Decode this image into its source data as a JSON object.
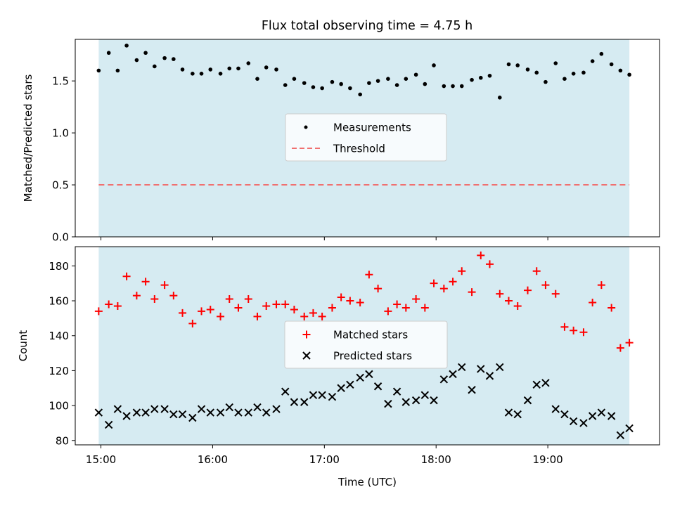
{
  "title": "Flux total observing time = 4.75 h",
  "colors": {
    "band": "#add8e6",
    "measurement": "#000000",
    "threshold": "#f07070",
    "matched": "#ff0000",
    "predicted": "#000000"
  },
  "chart_data": [
    {
      "type": "scatter",
      "ylabel": "Matched/Predicted stars",
      "ylim": [
        0,
        1.9
      ],
      "yticks": [
        0.0,
        0.5,
        1.0,
        1.5
      ],
      "ytick_labels": [
        "0.0",
        "0.5",
        "1.0",
        "1.5"
      ],
      "band_hours": [
        14.98,
        19.73
      ],
      "legend_position": "center",
      "threshold": {
        "name": "Threshold",
        "value": 0.5
      },
      "series": [
        {
          "name": "Measurements",
          "marker": "dot",
          "x": [
            14.98,
            15.07,
            15.15,
            15.23,
            15.32,
            15.4,
            15.48,
            15.57,
            15.65,
            15.73,
            15.82,
            15.9,
            15.98,
            16.07,
            16.15,
            16.23,
            16.32,
            16.4,
            16.48,
            16.57,
            16.65,
            16.73,
            16.82,
            16.9,
            16.98,
            17.07,
            17.15,
            17.23,
            17.32,
            17.4,
            17.48,
            17.57,
            17.65,
            17.73,
            17.82,
            17.9,
            17.98,
            18.07,
            18.15,
            18.23,
            18.32,
            18.4,
            18.48,
            18.57,
            18.65,
            18.73,
            18.82,
            18.9,
            18.98,
            19.07,
            19.15,
            19.23,
            19.32,
            19.4,
            19.48,
            19.57,
            19.65,
            19.73
          ],
          "y": [
            1.6,
            1.77,
            1.6,
            1.84,
            1.7,
            1.77,
            1.64,
            1.72,
            1.71,
            1.61,
            1.57,
            1.57,
            1.61,
            1.57,
            1.62,
            1.62,
            1.67,
            1.52,
            1.63,
            1.61,
            1.46,
            1.52,
            1.48,
            1.44,
            1.43,
            1.49,
            1.47,
            1.43,
            1.37,
            1.48,
            1.5,
            1.52,
            1.46,
            1.52,
            1.56,
            1.47,
            1.65,
            1.45,
            1.45,
            1.45,
            1.51,
            1.53,
            1.55,
            1.34,
            1.66,
            1.65,
            1.61,
            1.58,
            1.49,
            1.67,
            1.52,
            1.57,
            1.58,
            1.69,
            1.76,
            1.66,
            1.6,
            1.56
          ]
        }
      ]
    },
    {
      "type": "scatter",
      "ylabel": "Count",
      "xlabel": "Time (UTC)",
      "ylim": [
        77.5,
        191
      ],
      "yticks": [
        80,
        100,
        120,
        140,
        160,
        180
      ],
      "ytick_labels": [
        "80",
        "100",
        "120",
        "140",
        "160",
        "180"
      ],
      "xlim": [
        14.77,
        20.0
      ],
      "xticks": [
        15,
        16,
        17,
        18,
        19
      ],
      "xtick_labels": [
        "15:00",
        "16:00",
        "17:00",
        "18:00",
        "19:00"
      ],
      "band_hours": [
        14.98,
        19.73
      ],
      "legend_position": "center",
      "series": [
        {
          "name": "Matched stars",
          "marker": "plus",
          "x": [
            14.98,
            15.07,
            15.15,
            15.23,
            15.32,
            15.4,
            15.48,
            15.57,
            15.65,
            15.73,
            15.82,
            15.9,
            15.98,
            16.07,
            16.15,
            16.23,
            16.32,
            16.4,
            16.48,
            16.57,
            16.65,
            16.73,
            16.82,
            16.9,
            16.98,
            17.07,
            17.15,
            17.23,
            17.32,
            17.4,
            17.48,
            17.57,
            17.65,
            17.73,
            17.82,
            17.9,
            17.98,
            18.07,
            18.15,
            18.23,
            18.32,
            18.4,
            18.48,
            18.57,
            18.65,
            18.73,
            18.82,
            18.9,
            18.98,
            19.07,
            19.15,
            19.23,
            19.32,
            19.4,
            19.48,
            19.57,
            19.65,
            19.73
          ],
          "y": [
            154,
            158,
            157,
            174,
            163,
            171,
            161,
            169,
            163,
            153,
            147,
            154,
            155,
            151,
            161,
            156,
            161,
            151,
            157,
            158,
            158,
            155,
            151,
            153,
            151,
            156,
            162,
            160,
            159,
            175,
            167,
            154,
            158,
            156,
            161,
            156,
            170,
            167,
            171,
            177,
            165,
            186,
            181,
            164,
            160,
            157,
            166,
            177,
            169,
            164,
            145,
            143,
            142,
            159,
            169,
            156,
            133,
            136
          ]
        },
        {
          "name": "Predicted stars",
          "marker": "x",
          "x": [
            14.98,
            15.07,
            15.15,
            15.23,
            15.32,
            15.4,
            15.48,
            15.57,
            15.65,
            15.73,
            15.82,
            15.9,
            15.98,
            16.07,
            16.15,
            16.23,
            16.32,
            16.4,
            16.48,
            16.57,
            16.65,
            16.73,
            16.82,
            16.9,
            16.98,
            17.07,
            17.15,
            17.23,
            17.32,
            17.4,
            17.48,
            17.57,
            17.65,
            17.73,
            17.82,
            17.9,
            17.98,
            18.07,
            18.15,
            18.23,
            18.32,
            18.4,
            18.48,
            18.57,
            18.65,
            18.73,
            18.82,
            18.9,
            18.98,
            19.07,
            19.15,
            19.23,
            19.32,
            19.4,
            19.48,
            19.57,
            19.65,
            19.73
          ],
          "y": [
            96,
            89,
            98,
            94,
            96,
            96,
            98,
            98,
            95,
            95,
            93,
            98,
            96,
            96,
            99,
            96,
            96,
            99,
            96,
            98,
            108,
            102,
            102,
            106,
            106,
            105,
            110,
            112,
            116,
            118,
            111,
            101,
            108,
            102,
            103,
            106,
            103,
            115,
            118,
            122,
            109,
            121,
            117,
            122,
            96,
            95,
            103,
            112,
            113,
            98,
            95,
            91,
            90,
            94,
            96,
            94,
            83,
            87
          ]
        }
      ]
    }
  ]
}
